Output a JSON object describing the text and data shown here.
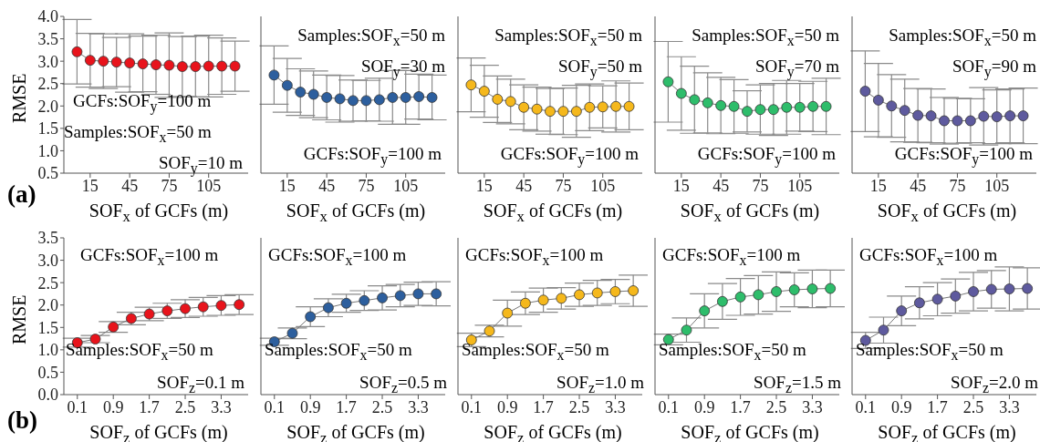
{
  "chart_data": [
    {
      "type": "line",
      "marker": "circle",
      "line_style": "solid",
      "ylabel": "RMSE",
      "xlabel": "SOF$_{x}$ of GCFs (m)",
      "x": [
        5,
        15,
        25,
        35,
        45,
        55,
        65,
        75,
        85,
        95,
        105,
        115,
        125
      ],
      "xlim": [
        -5,
        135
      ],
      "xticks": [
        15,
        45,
        75,
        105
      ],
      "ylim": [
        0.5,
        4.0
      ],
      "yticks": [
        0.5,
        {
          "value": 1,
          "label": "1.0"
        },
        1.5,
        {
          "value": 2,
          "label": "2.0"
        },
        2.5,
        {
          "value": 3,
          "label": "3.0"
        },
        3.5,
        {
          "value": 4,
          "label": "4.0"
        }
      ],
      "annotations": [
        "GCFs:SOF$_{y}$=100 m",
        "Samples:SOF$_{x}$=50 m",
        "SOF$_{y}$=10 m",
        "(a)"
      ],
      "series": [
        {
          "color": "#e8141c",
          "values": [
            3.21,
            3.02,
            3.0,
            2.98,
            2.96,
            2.94,
            2.92,
            2.91,
            2.88,
            2.88,
            2.89,
            2.89,
            2.89
          ],
          "errors": [
            0.72,
            0.6,
            0.61,
            0.55,
            0.65,
            0.62,
            0.66,
            0.72,
            0.67,
            0.68,
            0.69,
            0.63,
            0.56
          ]
        }
      ]
    },
    {
      "type": "line",
      "marker": "circle",
      "line_style": "solid",
      "tick_labels": "x",
      "xlabel": "SOF$_{x}$ of GCFs (m)",
      "x": [
        5,
        15,
        25,
        35,
        45,
        55,
        65,
        75,
        85,
        95,
        105,
        115,
        125
      ],
      "xlim": [
        -5,
        135
      ],
      "xticks": [
        15,
        45,
        75,
        105
      ],
      "ylim": [
        0.5,
        4.0
      ],
      "yticks": [
        0.5,
        1,
        1.5,
        2,
        2.5,
        3,
        3.5,
        4
      ],
      "annotations": [
        "Samples:SOF$_{x}$=50 m",
        "SOF$_{y}$=30 m",
        "GCFs:SOF$_{y}$=100 m"
      ],
      "series": [
        {
          "color": "#2d5f9e",
          "values": [
            2.69,
            2.46,
            2.31,
            2.26,
            2.19,
            2.16,
            2.12,
            2.12,
            2.14,
            2.19,
            2.19,
            2.21,
            2.19
          ],
          "errors": [
            0.65,
            0.6,
            0.52,
            0.52,
            0.5,
            0.52,
            0.46,
            0.45,
            0.48,
            0.6,
            0.6,
            0.5,
            0.5
          ]
        }
      ]
    },
    {
      "type": "line",
      "marker": "circle",
      "line_style": "solid",
      "tick_labels": "x",
      "xlabel": "SOF$_{x}$ of GCFs (m)",
      "x": [
        5,
        15,
        25,
        35,
        45,
        55,
        65,
        75,
        85,
        95,
        105,
        115,
        125
      ],
      "xlim": [
        -5,
        135
      ],
      "xticks": [
        15,
        45,
        75,
        105
      ],
      "ylim": [
        0.5,
        4.0
      ],
      "yticks": [
        0.5,
        1,
        1.5,
        2,
        2.5,
        3,
        3.5,
        4
      ],
      "annotations": [
        "Samples:SOF$_{x}$=50 m",
        "SOF$_{y}$=50 m",
        "GCFs:SOF$_{y}$=100 m"
      ],
      "series": [
        {
          "color": "#f5b81c",
          "values": [
            2.47,
            2.33,
            2.15,
            2.1,
            1.97,
            1.93,
            1.88,
            1.88,
            1.88,
            1.97,
            1.98,
            1.99,
            1.99
          ],
          "errors": [
            0.6,
            0.58,
            0.52,
            0.5,
            0.5,
            0.49,
            0.51,
            0.52,
            0.58,
            0.52,
            0.47,
            0.57,
            0.52
          ]
        }
      ]
    },
    {
      "type": "line",
      "marker": "circle",
      "line_style": "solid",
      "tick_labels": "x",
      "xlabel": "SOF$_{x}$ of GCFs (m)",
      "x": [
        5,
        15,
        25,
        35,
        45,
        55,
        65,
        75,
        85,
        95,
        105,
        115,
        125
      ],
      "xlim": [
        -5,
        135
      ],
      "xticks": [
        15,
        45,
        75,
        105
      ],
      "ylim": [
        0.5,
        4.0
      ],
      "yticks": [
        0.5,
        1,
        1.5,
        2,
        2.5,
        3,
        3.5,
        4
      ],
      "annotations": [
        "Samples:SOF$_{x}$=50 m",
        "SOF$_{y}$=70 m",
        "GCFs:SOF$_{y}$=100 m"
      ],
      "series": [
        {
          "color": "#2ebd6b",
          "values": [
            2.54,
            2.28,
            2.14,
            2.07,
            2.01,
            1.99,
            1.88,
            1.92,
            1.92,
            1.97,
            1.97,
            1.99,
            1.99
          ],
          "errors": [
            0.9,
            0.82,
            0.75,
            0.67,
            0.63,
            0.6,
            0.46,
            0.55,
            0.58,
            0.6,
            0.53,
            0.56,
            0.63
          ]
        }
      ]
    },
    {
      "type": "line",
      "marker": "circle",
      "line_style": "solid",
      "tick_labels": "x",
      "xlabel": "SOF$_{x}$ of GCFs (m)",
      "x": [
        5,
        15,
        25,
        35,
        45,
        55,
        65,
        75,
        85,
        95,
        105,
        115,
        125
      ],
      "xlim": [
        -5,
        135
      ],
      "xticks": [
        15,
        45,
        75,
        105
      ],
      "ylim": [
        0.5,
        4.0
      ],
      "yticks": [
        0.5,
        1,
        1.5,
        2,
        2.5,
        3,
        3.5,
        4
      ],
      "annotations": [
        "Samples:SOF$_{x}$=50 m",
        "SOF$_{y}$=90 m",
        "GCFs:SOF$_{y}$=100 m"
      ],
      "series": [
        {
          "color": "#5e5a9e",
          "values": [
            2.33,
            2.13,
            2.0,
            1.9,
            1.79,
            1.78,
            1.67,
            1.67,
            1.67,
            1.77,
            1.76,
            1.78,
            1.78
          ],
          "errors": [
            0.9,
            0.82,
            0.7,
            0.7,
            0.6,
            0.6,
            0.52,
            0.5,
            0.49,
            0.64,
            0.6,
            0.6,
            0.62
          ]
        }
      ]
    },
    {
      "type": "line",
      "marker": "circle",
      "line_style": "solid",
      "ylabel": "RMSE",
      "xlabel": "SOF$_{z}$ of GCFs (m)",
      "x": [
        0.1,
        0.5,
        0.9,
        1.3,
        1.7,
        2.1,
        2.5,
        2.9,
        3.3,
        3.7
      ],
      "xlim": [
        -0.2,
        3.9
      ],
      "xticks": [
        0.1,
        0.9,
        1.7,
        2.5,
        3.3
      ],
      "ylim": [
        0,
        3.5
      ],
      "yticks": [
        {
          "value": 0,
          "label": "0.0"
        },
        0.5,
        {
          "value": 1,
          "label": "1.0"
        },
        1.5,
        {
          "value": 2,
          "label": "2.0"
        },
        2.5,
        {
          "value": 3,
          "label": "3.0"
        },
        3.5
      ],
      "annotations": [
        "GCFs:SOF$_{x}$=100 m",
        "Samples:SOF$_{x}$=50 m",
        "SOF$_{z}$=0.1 m",
        "(b)"
      ],
      "series": [
        {
          "color": "#e8141c",
          "values": [
            1.16,
            1.24,
            1.51,
            1.7,
            1.8,
            1.87,
            1.92,
            1.96,
            1.99,
            2.01
          ],
          "errors": [
            0.1,
            0.08,
            0.12,
            0.14,
            0.15,
            0.17,
            0.2,
            0.21,
            0.22,
            0.22
          ]
        }
      ]
    },
    {
      "type": "line",
      "marker": "circle",
      "line_style": "solid",
      "tick_labels": "x",
      "xlabel": "SOF$_{z}$ of GCFs (m)",
      "x": [
        0.1,
        0.5,
        0.9,
        1.3,
        1.7,
        2.1,
        2.5,
        2.9,
        3.3,
        3.7
      ],
      "xlim": [
        -0.2,
        3.9
      ],
      "xticks": [
        0.1,
        0.9,
        1.7,
        2.5,
        3.3
      ],
      "ylim": [
        0,
        3.5
      ],
      "yticks": [
        0,
        0.5,
        1,
        1.5,
        2,
        2.5,
        3,
        3.5
      ],
      "annotations": [
        "GCFs:SOF$_{x}$=100 m",
        "Samples:SOF$_{x}$=50 m",
        "SOF$_{z}$=0.5 m"
      ],
      "series": [
        {
          "color": "#2d5f9e",
          "values": [
            1.18,
            1.37,
            1.74,
            1.94,
            2.04,
            2.1,
            2.16,
            2.21,
            2.25,
            2.25
          ],
          "errors": [
            0.08,
            0.12,
            0.22,
            0.2,
            0.2,
            0.22,
            0.27,
            0.25,
            0.26,
            0.27
          ]
        }
      ]
    },
    {
      "type": "line",
      "marker": "circle",
      "line_style": "solid",
      "tick_labels": "x",
      "xlabel": "SOF$_{z}$ of GCFs (m)",
      "x": [
        0.1,
        0.5,
        0.9,
        1.3,
        1.7,
        2.1,
        2.5,
        2.9,
        3.3,
        3.7
      ],
      "xlim": [
        -0.2,
        3.9
      ],
      "xticks": [
        0.1,
        0.9,
        1.7,
        2.5,
        3.3
      ],
      "ylim": [
        0,
        3.5
      ],
      "yticks": [
        0,
        0.5,
        1,
        1.5,
        2,
        2.5,
        3,
        3.5
      ],
      "annotations": [
        "GCFs:SOF$_{x}$=100 m",
        "Samples:SOF$_{x}$=50 m",
        "SOF$_{z}$=1.0 m"
      ],
      "series": [
        {
          "color": "#f5b81c",
          "values": [
            1.22,
            1.42,
            1.82,
            2.04,
            2.11,
            2.15,
            2.23,
            2.27,
            2.3,
            2.32
          ],
          "errors": [
            0.15,
            0.13,
            0.29,
            0.25,
            0.27,
            0.24,
            0.26,
            0.28,
            0.27,
            0.35
          ]
        }
      ]
    },
    {
      "type": "line",
      "marker": "circle",
      "line_style": "solid",
      "tick_labels": "x",
      "xlabel": "SOF$_{z}$ of GCFs (m)",
      "x": [
        0.1,
        0.5,
        0.9,
        1.3,
        1.7,
        2.1,
        2.5,
        2.9,
        3.3,
        3.7
      ],
      "xlim": [
        -0.2,
        3.9
      ],
      "xticks": [
        0.1,
        0.9,
        1.7,
        2.5,
        3.3
      ],
      "ylim": [
        0,
        3.5
      ],
      "yticks": [
        0,
        0.5,
        1,
        1.5,
        2,
        2.5,
        3,
        3.5
      ],
      "annotations": [
        "GCFs:SOF$_{x}$=100 m",
        "Samples:SOF$_{x}$=50 m",
        "SOF$_{z}$=1.5 m"
      ],
      "series": [
        {
          "color": "#2ebd6b",
          "values": [
            1.23,
            1.44,
            1.87,
            2.08,
            2.18,
            2.23,
            2.3,
            2.34,
            2.36,
            2.37
          ],
          "errors": [
            0.12,
            0.27,
            0.38,
            0.4,
            0.41,
            0.43,
            0.44,
            0.38,
            0.42,
            0.41
          ]
        }
      ]
    },
    {
      "type": "line",
      "marker": "circle",
      "line_style": "solid",
      "tick_labels": "x",
      "xlabel": "SOF$_{z}$ of GCFs (m)",
      "x": [
        0.1,
        0.5,
        0.9,
        1.3,
        1.7,
        2.1,
        2.5,
        2.9,
        3.3,
        3.7
      ],
      "xlim": [
        -0.2,
        3.9
      ],
      "xticks": [
        0.1,
        0.9,
        1.7,
        2.5,
        3.3
      ],
      "ylim": [
        0,
        3.5
      ],
      "yticks": [
        0,
        0.5,
        1,
        1.5,
        2,
        2.5,
        3,
        3.5
      ],
      "annotations": [
        "GCFs:SOF$_{x}$=100 m",
        "Samples:SOF$_{x}$=50 m",
        "SOF$_{z}$=2.0 m"
      ],
      "series": [
        {
          "color": "#5e5a9e",
          "values": [
            1.21,
            1.44,
            1.87,
            2.05,
            2.13,
            2.2,
            2.3,
            2.35,
            2.36,
            2.37
          ],
          "errors": [
            0.18,
            0.29,
            0.33,
            0.36,
            0.37,
            0.38,
            0.43,
            0.42,
            0.49,
            0.46
          ]
        }
      ]
    }
  ]
}
